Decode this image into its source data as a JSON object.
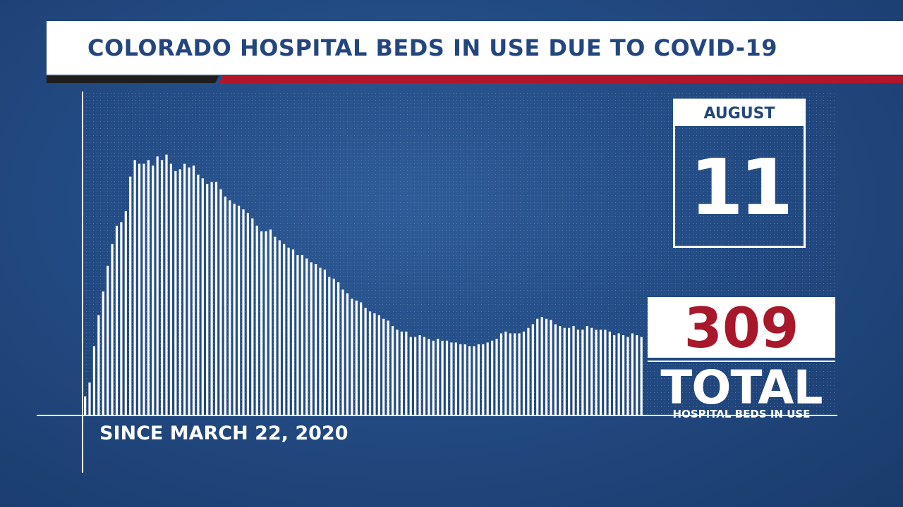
{
  "header": {
    "title": "COLORADO HOSPITAL BEDS IN USE DUE TO COVID-19"
  },
  "date_box": {
    "month": "AUGUST",
    "day": "11"
  },
  "total": {
    "value": "309",
    "label": "TOTAL",
    "sublabel": "HOSPITAL BEDS IN USE"
  },
  "footer": {
    "since": "SINCE MARCH 22, 2020"
  },
  "colors": {
    "background": "#234b84",
    "title_text": "#24467f",
    "accent_red": "#b0172c",
    "bars": "#ffffff"
  },
  "chart_data": {
    "type": "bar",
    "title": "",
    "xlabel": "",
    "ylabel": "",
    "x_range": [
      "2020-03-22",
      "2020-08-11"
    ],
    "ylim": [
      0,
      888
    ],
    "grid": true,
    "values": [
      52,
      90,
      190,
      275,
      340,
      410,
      470,
      520,
      530,
      560,
      655,
      700,
      690,
      690,
      700,
      685,
      710,
      700,
      715,
      690,
      670,
      675,
      690,
      680,
      685,
      660,
      650,
      635,
      640,
      640,
      620,
      600,
      590,
      580,
      575,
      565,
      555,
      540,
      520,
      505,
      505,
      510,
      490,
      480,
      470,
      460,
      455,
      440,
      440,
      430,
      420,
      415,
      405,
      400,
      380,
      375,
      365,
      345,
      335,
      320,
      315,
      310,
      295,
      285,
      280,
      275,
      265,
      260,
      245,
      235,
      230,
      230,
      215,
      215,
      220,
      215,
      210,
      205,
      210,
      205,
      205,
      200,
      200,
      195,
      195,
      190,
      190,
      195,
      195,
      200,
      205,
      210,
      225,
      230,
      225,
      225,
      225,
      230,
      240,
      250,
      265,
      270,
      265,
      262,
      250,
      245,
      240,
      240,
      245,
      235,
      235,
      245,
      240,
      235,
      235,
      235,
      230,
      220,
      225,
      220,
      215,
      225,
      220,
      215
    ]
  }
}
